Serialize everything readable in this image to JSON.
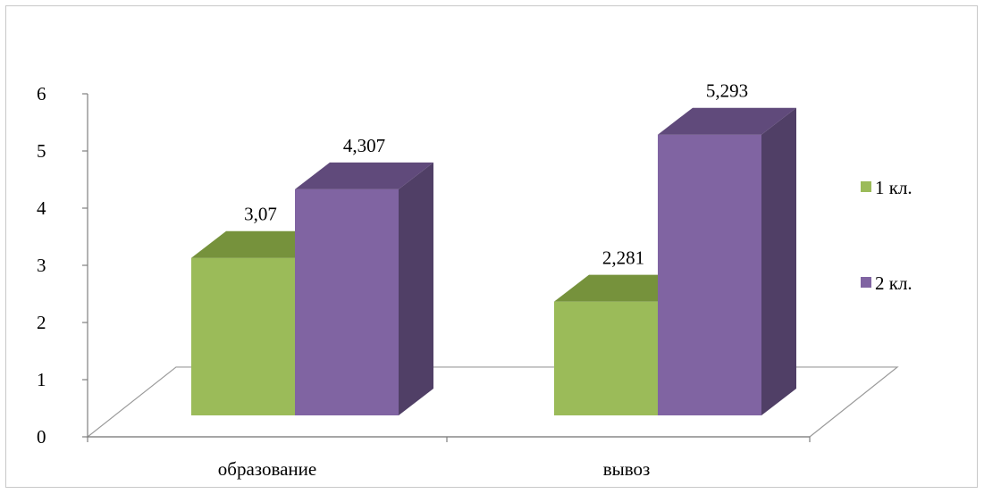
{
  "chart_data": {
    "type": "bar",
    "style": "3d-clustered-column",
    "categories": [
      "образование",
      "вывоз"
    ],
    "series": [
      {
        "name": "1 кл.",
        "values": [
          3.07,
          2.281
        ],
        "labels": [
          "3,07",
          "2,281"
        ],
        "color": "#9bbb59",
        "top_color": "#76923c",
        "side_color": "#6d8738"
      },
      {
        "name": "2 кл.",
        "values": [
          4.307,
          5.293
        ],
        "labels": [
          "4,307",
          "5,293"
        ],
        "color": "#8064a2",
        "top_color": "#604a7b",
        "side_color": "#503f66"
      }
    ],
    "ylim": [
      0,
      6
    ],
    "yticks": [
      "0",
      "1",
      "2",
      "3",
      "4",
      "5",
      "6"
    ],
    "xlabel": "",
    "ylabel": "",
    "title": "",
    "grid": false,
    "legend": "right"
  }
}
